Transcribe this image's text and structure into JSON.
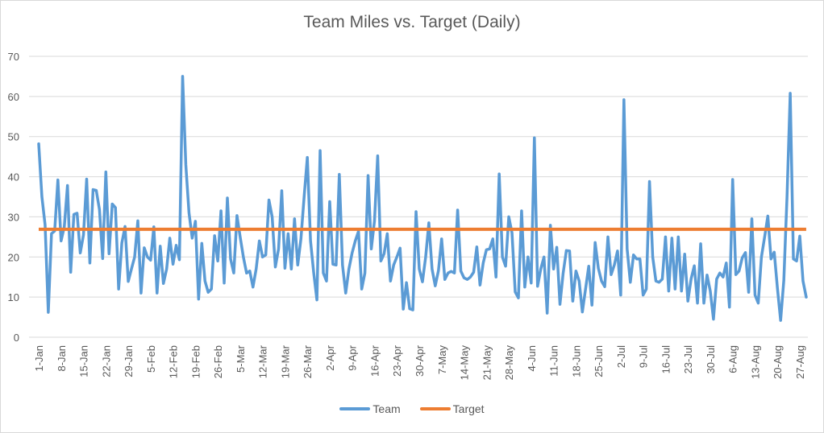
{
  "chart_data": {
    "type": "line",
    "title": "Team Miles vs. Target (Daily)",
    "xlabel": "",
    "ylabel": "",
    "ylim": [
      0,
      70
    ],
    "yticks": [
      0,
      10,
      20,
      30,
      40,
      50,
      60,
      70
    ],
    "grid": true,
    "legend_position": "bottom",
    "x_start": "1-Jan",
    "x_tick_labels": [
      "1-Jan",
      "8-Jan",
      "15-Jan",
      "22-Jan",
      "29-Jan",
      "5-Feb",
      "12-Feb",
      "19-Feb",
      "26-Feb",
      "5-Mar",
      "12-Mar",
      "19-Mar",
      "26-Mar",
      "2-Apr",
      "9-Apr",
      "16-Apr",
      "23-Apr",
      "30-Apr",
      "7-May",
      "14-May",
      "21-May",
      "28-May",
      "4-Jun",
      "11-Jun",
      "18-Jun",
      "25-Jun",
      "2-Jul",
      "9-Jul",
      "16-Jul",
      "23-Jul",
      "30-Jul",
      "6-Aug",
      "13-Aug",
      "20-Aug",
      "27-Aug"
    ],
    "series": [
      {
        "name": "Team",
        "color": "#5b9bd5",
        "values": [
          48.2,
          35,
          28,
          6.2,
          25.8,
          26.5,
          39.2,
          24,
          27.5,
          37.8,
          16.2,
          30.6,
          30.9,
          21,
          25.5,
          39.4,
          18.5,
          36.8,
          36.6,
          31.8,
          19.6,
          41.2,
          20.8,
          33.2,
          32.3,
          12,
          23.5,
          27.6,
          13.9,
          17,
          20,
          29,
          11,
          22.3,
          20,
          19.2,
          27.5,
          11,
          22.7,
          13.4,
          17,
          24.7,
          18.2,
          22.9,
          19.3,
          65,
          43,
          31,
          24.7,
          28.9,
          9.5,
          23.4,
          14,
          11.2,
          12,
          25.3,
          19,
          31.5,
          13.5,
          34.7,
          19.5,
          16,
          30.3,
          25,
          20,
          16,
          16.5,
          12.5,
          17,
          24,
          20,
          20.5,
          34.2,
          30,
          17.5,
          22,
          36.5,
          17.2,
          25.8,
          17,
          29.5,
          18,
          24.5,
          35,
          44.8,
          24,
          16,
          9.3,
          46.5,
          16,
          14,
          33.8,
          18.2,
          18,
          40.6,
          18,
          11,
          17,
          21,
          24,
          26.4,
          12,
          16,
          40.3,
          22,
          29,
          45.2,
          19,
          20.8,
          25.8,
          14,
          18,
          20,
          22.2,
          7,
          13.6,
          7.1,
          6.8,
          31.3,
          17,
          13.8,
          20,
          28.5,
          17,
          12.8,
          16.6,
          24.5,
          14.4,
          16,
          16.4,
          16,
          31.7,
          16.5,
          14.8,
          14.4,
          15,
          16.2,
          22.5,
          13,
          18.5,
          21.8,
          22,
          24.5,
          15,
          40.7,
          20,
          17.7,
          30,
          26,
          11.3,
          9.8,
          31.5,
          12.5,
          20,
          13.5,
          49.7,
          12.7,
          17,
          20,
          6,
          27.9,
          17,
          22.4,
          8.2,
          16,
          21.6,
          21.5,
          9,
          16.5,
          14,
          6.3,
          12,
          17.7,
          8,
          23.6,
          17.2,
          14,
          12.6,
          25,
          15.6,
          18,
          21.5,
          10.5,
          59.2,
          22,
          13.7,
          20.5,
          19.5,
          19.5,
          10.5,
          12,
          38.8,
          20,
          14,
          13.7,
          14.5,
          25,
          11.5,
          24.7,
          12,
          25,
          11.5,
          20.7,
          9,
          14.5,
          17.8,
          8.5,
          23.3,
          8.5,
          15.5,
          11.5,
          4.5,
          14.5,
          16,
          15,
          18.5,
          7.5,
          39.3,
          15.6,
          16.5,
          19.8,
          21.1,
          11.2,
          29.5,
          10.5,
          8.5,
          20,
          25,
          30.2,
          19.5,
          21.2,
          12.2,
          4.2,
          14.2,
          35,
          60.8,
          19.5,
          19,
          25.2,
          14,
          10
        ]
      },
      {
        "name": "Target",
        "color": "#ed7d31",
        "constant": 26.9
      }
    ]
  }
}
